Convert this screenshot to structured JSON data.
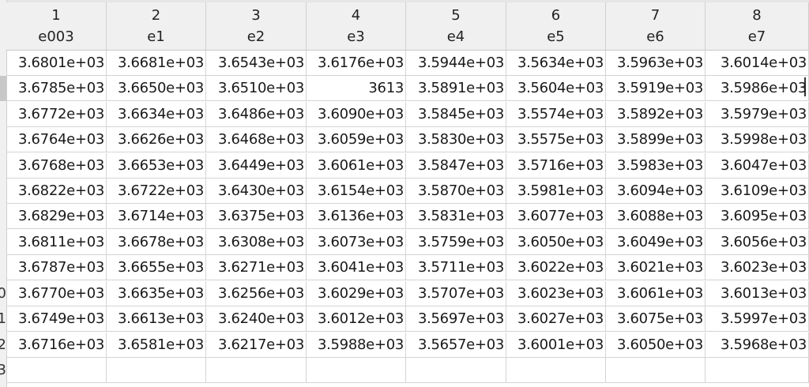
{
  "columns": [
    {
      "num": "1",
      "name": "e003"
    },
    {
      "num": "2",
      "name": "e1"
    },
    {
      "num": "3",
      "name": "e2"
    },
    {
      "num": "4",
      "name": "e3"
    },
    {
      "num": "5",
      "name": "e4"
    },
    {
      "num": "6",
      "name": "e5"
    },
    {
      "num": "7",
      "name": "e6"
    },
    {
      "num": "8",
      "name": "e7"
    }
  ],
  "rows": [
    {
      "label": "",
      "cells": [
        "3.6801e+03",
        "3.6681e+03",
        "3.6543e+03",
        "3.6176e+03",
        "3.5944e+03",
        "3.5634e+03",
        "3.5963e+03",
        "3.6014e+03"
      ]
    },
    {
      "label": "",
      "cells": [
        "3.6785e+03",
        "3.6650e+03",
        "3.6510e+03",
        "3613",
        "3.5891e+03",
        "3.5604e+03",
        "3.5919e+03",
        "3.5986e+03"
      ]
    },
    {
      "label": "",
      "cells": [
        "3.6772e+03",
        "3.6634e+03",
        "3.6486e+03",
        "3.6090e+03",
        "3.5845e+03",
        "3.5574e+03",
        "3.5892e+03",
        "3.5979e+03"
      ]
    },
    {
      "label": "",
      "cells": [
        "3.6764e+03",
        "3.6626e+03",
        "3.6468e+03",
        "3.6059e+03",
        "3.5830e+03",
        "3.5575e+03",
        "3.5899e+03",
        "3.5998e+03"
      ]
    },
    {
      "label": "",
      "cells": [
        "3.6768e+03",
        "3.6653e+03",
        "3.6449e+03",
        "3.6061e+03",
        "3.5847e+03",
        "3.5716e+03",
        "3.5983e+03",
        "3.6047e+03"
      ]
    },
    {
      "label": "",
      "cells": [
        "3.6822e+03",
        "3.6722e+03",
        "3.6430e+03",
        "3.6154e+03",
        "3.5870e+03",
        "3.5981e+03",
        "3.6094e+03",
        "3.6109e+03"
      ]
    },
    {
      "label": "",
      "cells": [
        "3.6829e+03",
        "3.6714e+03",
        "3.6375e+03",
        "3.6136e+03",
        "3.5831e+03",
        "3.6077e+03",
        "3.6088e+03",
        "3.6095e+03"
      ]
    },
    {
      "label": "",
      "cells": [
        "3.6811e+03",
        "3.6678e+03",
        "3.6308e+03",
        "3.6073e+03",
        "3.5759e+03",
        "3.6050e+03",
        "3.6049e+03",
        "3.6056e+03"
      ]
    },
    {
      "label": "",
      "cells": [
        "3.6787e+03",
        "3.6655e+03",
        "3.6271e+03",
        "3.6041e+03",
        "3.5711e+03",
        "3.6022e+03",
        "3.6021e+03",
        "3.6023e+03"
      ]
    },
    {
      "label": "0",
      "cells": [
        "3.6770e+03",
        "3.6635e+03",
        "3.6256e+03",
        "3.6029e+03",
        "3.5707e+03",
        "3.6023e+03",
        "3.6061e+03",
        "3.6013e+03"
      ]
    },
    {
      "label": "1",
      "cells": [
        "3.6749e+03",
        "3.6613e+03",
        "3.6240e+03",
        "3.6012e+03",
        "3.5697e+03",
        "3.6027e+03",
        "3.6075e+03",
        "3.5997e+03"
      ]
    },
    {
      "label": "2",
      "cells": [
        "3.6716e+03",
        "3.6581e+03",
        "3.6217e+03",
        "3.5988e+03",
        "3.5657e+03",
        "3.6001e+03",
        "3.6050e+03",
        "3.5968e+03"
      ]
    },
    {
      "label": "3",
      "cells": [
        "",
        "",
        "",
        "",
        "",
        "",
        "",
        ""
      ]
    }
  ]
}
